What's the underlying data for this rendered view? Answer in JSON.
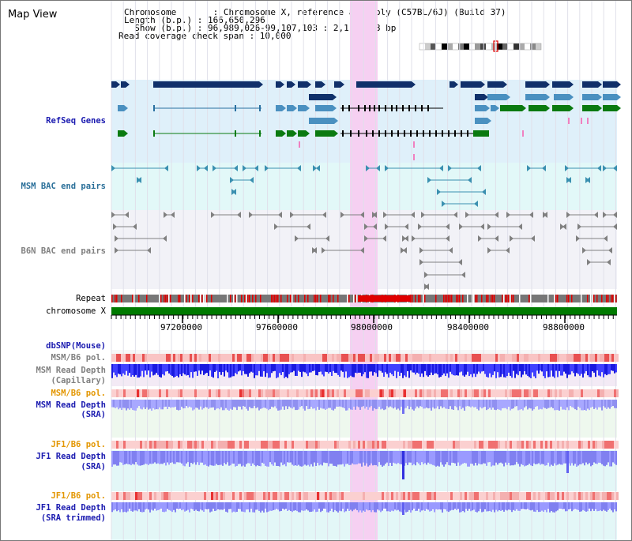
{
  "title": "Map View",
  "info": {
    "chromosome": "Chromosome       : Chromosome X, reference assembly (C57BL/6J) (Build 37)",
    "length": "Length (b.p.) : 166,650,296",
    "show": "  Show (b.p.) : 96,989,026-99,107,103 : 2,118,078 bp",
    "span": "Read coverage check span : 10,000"
  },
  "tracks": {
    "refseq": "RefSeq Genes",
    "msm_bac": "MSM BAC end pairs",
    "b6n_bac": "B6N BAC end pairs",
    "repeat": "Repeat",
    "chromosome": "chromosome X",
    "dbsnp": "dbSNP(Mouse)",
    "msm_pol1": "MSM/B6 pol.",
    "msm_depth_cap": "MSM Read Depth",
    "msm_depth_cap2": "(Capillary)",
    "msm_pol2": "MSM/B6 pol.",
    "msm_depth_sra": "MSM Read Depth",
    "msm_depth_sra2": "(SRA)",
    "jf1_pol1": "JF1/B6 pol.",
    "jf1_depth": "JF1 Read Depth",
    "jf1_depth2": "(SRA)",
    "jf1_pol2": "JF1/B6 pol.",
    "jf1_depth_trim": "JF1 Read Depth",
    "jf1_depth_trim2": "(SRA trimmed)"
  },
  "ruler": {
    "ticks": [
      "97200000",
      "97600000",
      "98000000",
      "98400000",
      "98800000"
    ]
  },
  "colors": {
    "refseq_dark": "#10306a",
    "refseq_mid": "#4a90c0",
    "refseq_green": "#0a7a10",
    "highlight": "#f6d0f2",
    "bac_teal": "#3a90b0",
    "bac_grey": "#808080",
    "repeat_red": "#e00000",
    "chrom_green": "#007a00"
  }
}
